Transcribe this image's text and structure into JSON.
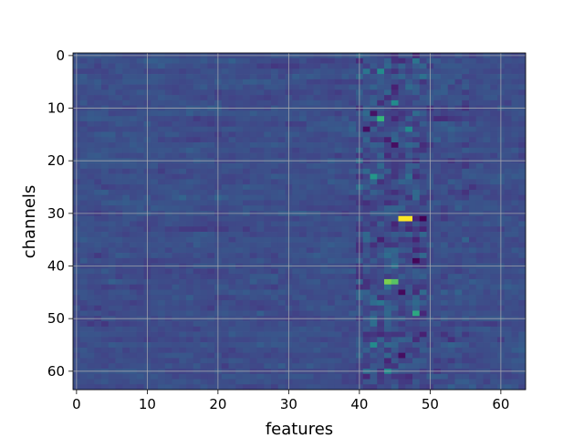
{
  "chart_data": {
    "type": "heatmap",
    "title": "",
    "xlabel": "features",
    "ylabel": "channels",
    "x_ticks": [
      0,
      10,
      20,
      30,
      40,
      50,
      60
    ],
    "y_ticks": [
      0,
      10,
      20,
      30,
      40,
      50,
      60
    ],
    "xlim": [
      -0.5,
      63.5
    ],
    "ylim": [
      63.5,
      -0.5
    ],
    "n_columns": 64,
    "n_rows": 64,
    "colormap": "viridis",
    "grid": true,
    "grid_color": "#b0b0b0",
    "background_color": "#39568c",
    "hot_cells": [
      {
        "row": 31,
        "col": 46,
        "value": 1.0
      },
      {
        "row": 31,
        "col": 47,
        "value": 1.0
      },
      {
        "row": 43,
        "col": 44,
        "value": 0.85
      },
      {
        "row": 43,
        "col": 45,
        "value": 0.8
      },
      {
        "row": 12,
        "col": 43,
        "value": 0.75
      },
      {
        "row": 23,
        "col": 42,
        "value": 0.65
      },
      {
        "row": 49,
        "col": 48,
        "value": 0.7
      },
      {
        "row": 9,
        "col": 45,
        "value": 0.6
      },
      {
        "row": 3,
        "col": 43,
        "value": 0.6
      },
      {
        "row": 14,
        "col": 47,
        "value": 0.6
      },
      {
        "row": 55,
        "col": 42,
        "value": 0.6
      },
      {
        "row": 60,
        "col": 44,
        "value": 0.6
      }
    ],
    "cold_cells": [
      {
        "row": 31,
        "col": 49,
        "value": 0.0
      },
      {
        "row": 39,
        "col": 48,
        "value": 0.02
      },
      {
        "row": 45,
        "col": 46,
        "value": 0.03
      },
      {
        "row": 14,
        "col": 41,
        "value": 0.05
      },
      {
        "row": 17,
        "col": 45,
        "value": 0.05
      },
      {
        "row": 57,
        "col": 46,
        "value": 0.05
      }
    ]
  }
}
